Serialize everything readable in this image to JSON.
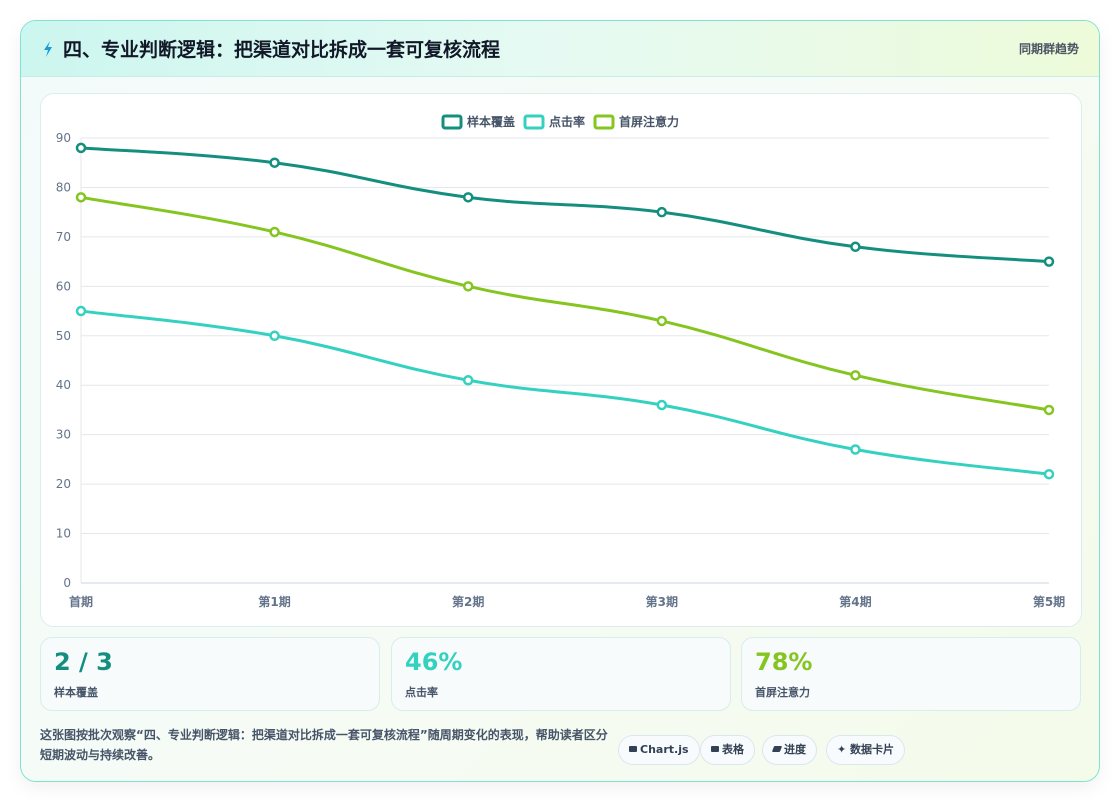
{
  "header": {
    "title": "四、专业判断逻辑：把渠道对比拆成一套可复核流程",
    "link": "同期群趋势"
  },
  "colors": {
    "series1": "#148f7f",
    "series2": "#34d1c1",
    "series3": "#84c51f",
    "grid": "#e5e7eb",
    "axis_text": "#64748b"
  },
  "chart_data": {
    "type": "line",
    "categories": [
      "首期",
      "第1期",
      "第2期",
      "第3期",
      "第4期",
      "第5期"
    ],
    "series": [
      {
        "name": "样本覆盖",
        "values": [
          88,
          85,
          78,
          75,
          68,
          65
        ]
      },
      {
        "name": "点击率",
        "values": [
          55,
          50,
          41,
          36,
          27,
          22
        ]
      },
      {
        "name": "首屏注意力",
        "values": [
          78,
          71,
          60,
          53,
          42,
          35
        ]
      }
    ],
    "ylim": [
      0,
      90
    ],
    "yticks": [
      0,
      10,
      20,
      30,
      40,
      50,
      60,
      70,
      80,
      90
    ],
    "grid": true,
    "legend": "top-center",
    "title": "",
    "xlabel": "",
    "ylabel": ""
  },
  "stats": [
    {
      "value": "2 / 3",
      "label": "样本覆盖"
    },
    {
      "value": "46%",
      "label": "点击率"
    },
    {
      "value": "78%",
      "label": "首屏注意力"
    }
  ],
  "description": "这张图按批次观察“四、专业判断逻辑：把渠道对比拆成一套可复核流程”随周期变化的表现，帮助读者区分短期波动与持续改善。",
  "chips": [
    {
      "icon": "table-icon",
      "label": "Chart.js"
    },
    {
      "icon": "grid-icon",
      "label": "表格"
    },
    {
      "icon": "progress-icon",
      "label": "进度"
    },
    {
      "icon": "sparkle-icon",
      "label": "数据卡片"
    }
  ]
}
